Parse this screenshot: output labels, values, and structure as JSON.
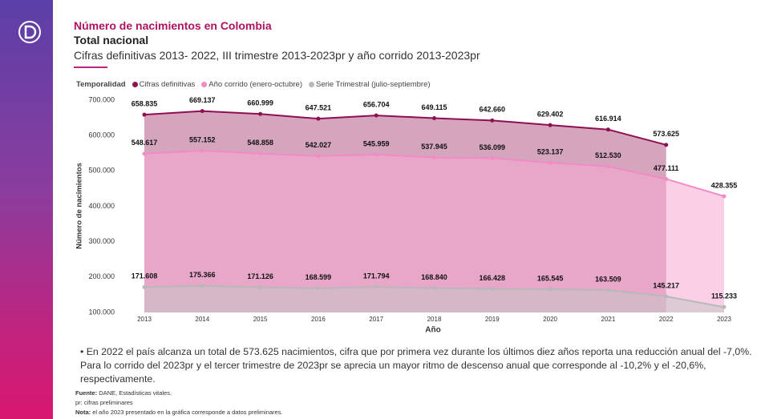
{
  "chart_data": {
    "type": "area",
    "title": "Número de nacimientos en Colombia",
    "subtitle": "Total nacional",
    "description": "Cifras definitivas 2013- 2022, III trimestre 2013-2023pr y año corrido 2013-2023pr",
    "legend_title": "Temporalidad",
    "x_label": "Año",
    "y_label": "Número de nacimientos",
    "categories": [
      "2013",
      "2014",
      "2015",
      "2016",
      "2017",
      "2018",
      "2019",
      "2020",
      "2021",
      "2022",
      "2023"
    ],
    "ylim": [
      100000,
      700000
    ],
    "yticks": [
      {
        "value": 100000,
        "label": "100.000"
      },
      {
        "value": 200000,
        "label": "200.000"
      },
      {
        "value": 300000,
        "label": "300.000"
      },
      {
        "value": 400000,
        "label": "400.000"
      },
      {
        "value": 500000,
        "label": "500.000"
      },
      {
        "value": 600000,
        "label": "600.000"
      },
      {
        "value": 700000,
        "label": "700.000"
      }
    ],
    "series": [
      {
        "name": "Cifras definitivas",
        "color": "#8e0f52",
        "fill": "#b35a86",
        "values": [
          658835,
          669137,
          660999,
          647521,
          656704,
          649115,
          642660,
          629402,
          616914,
          573625,
          null
        ],
        "value_labels": [
          "658.835",
          "669.137",
          "660.999",
          "647.521",
          "656.704",
          "649.115",
          "642.660",
          "629.402",
          "616.914",
          "573.625",
          null
        ]
      },
      {
        "name": "Año corrido (enero-octubre)",
        "color": "#f28ac6",
        "fill": "#f7a9d4",
        "values": [
          548617,
          557152,
          548858,
          542027,
          545959,
          537945,
          536099,
          523137,
          512530,
          477111,
          428355
        ],
        "value_labels": [
          "548.617",
          "557.152",
          "548.858",
          "542.027",
          "545.959",
          "537.945",
          "536.099",
          "523.137",
          "512.530",
          "477.111",
          "428.355"
        ]
      },
      {
        "name": "Serie Trimestral (julio-septiembre)",
        "color": "#b8b8b8",
        "fill": "#c4c4c4",
        "values": [
          171608,
          175366,
          171126,
          168599,
          171794,
          168840,
          166428,
          165545,
          163509,
          145217,
          115233
        ],
        "value_labels": [
          "171.608",
          "175.366",
          "171.126",
          "168.599",
          "171.794",
          "168.840",
          "166.428",
          "165.545",
          "163.509",
          "145.217",
          "115.233"
        ]
      }
    ],
    "note": "• En 2022 el país alcanza un total de 573.625 nacimientos, cifra que por primera vez durante los últimos diez años reporta una reducción anual del -7,0%. Para lo corrido del 2023pr y el tercer trimestre de 2023pr se aprecia un mayor ritmo de descenso anual que corresponde al -10,2% y el -20,6%, respectivamente.",
    "source_label": "Fuente:",
    "source": "DANE, Estadísticas vitales.",
    "pr_note": "pr: cifras preliminares",
    "nota_label": "Nota:",
    "nota": "el año 2023 presentado en la gráfica corresponde a datos preliminares."
  }
}
